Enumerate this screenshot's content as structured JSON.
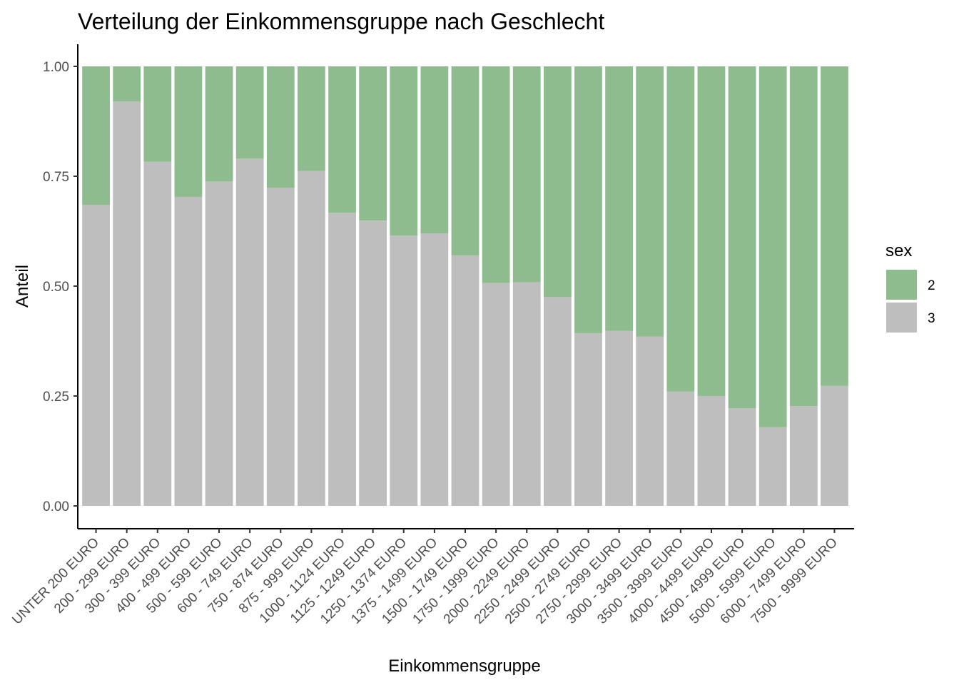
{
  "chart_data": {
    "type": "bar",
    "stacked": "fill",
    "title": "Verteilung der Einkommensgruppe nach Geschlecht",
    "xlabel": "Einkommensgruppe",
    "ylabel": "Anteil",
    "ylim": [
      0,
      1
    ],
    "yticks": [
      "0.00",
      "0.25",
      "0.50",
      "0.75",
      "1.00"
    ],
    "ytick_values": [
      0,
      0.25,
      0.5,
      0.75,
      1.0
    ],
    "categories": [
      "UNTER 200 EURO",
      "200 - 299 EURO",
      "300 - 399 EURO",
      "400 - 499 EURO",
      "500 - 599 EURO",
      "600 - 749 EURO",
      "750 - 874 EURO",
      "875 - 999 EURO",
      "1000 - 1124 EURO",
      "1125 - 1249 EURO",
      "1250 - 1374 EURO",
      "1375 - 1499 EURO",
      "1500 - 1749 EURO",
      "1750 - 1999 EURO",
      "2000 - 2249 EURO",
      "2250 - 2499 EURO",
      "2500 - 2749 EURO",
      "2750 - 2999 EURO",
      "3000 - 3499 EURO",
      "3500 - 3999 EURO",
      "4000 - 4499 EURO",
      "4500 - 4999 EURO",
      "5000 - 5999 EURO",
      "6000 - 7499 EURO",
      "7500 - 9999 EURO"
    ],
    "series": [
      {
        "name": "2",
        "color": "#8fbc8f",
        "values": [
          0.315,
          0.08,
          0.217,
          0.297,
          0.262,
          0.21,
          0.276,
          0.238,
          0.333,
          0.351,
          0.385,
          0.38,
          0.43,
          0.493,
          0.491,
          0.525,
          0.607,
          0.602,
          0.615,
          0.74,
          0.75,
          0.778,
          0.821,
          0.773,
          0.727
        ]
      },
      {
        "name": "3",
        "color": "#bebebe",
        "values": [
          0.685,
          0.92,
          0.783,
          0.703,
          0.738,
          0.79,
          0.724,
          0.762,
          0.667,
          0.649,
          0.615,
          0.62,
          0.57,
          0.507,
          0.509,
          0.475,
          0.393,
          0.398,
          0.385,
          0.26,
          0.25,
          0.222,
          0.179,
          0.227,
          0.273
        ]
      }
    ],
    "legend": {
      "title": "sex",
      "position": "right"
    },
    "grid": false
  }
}
